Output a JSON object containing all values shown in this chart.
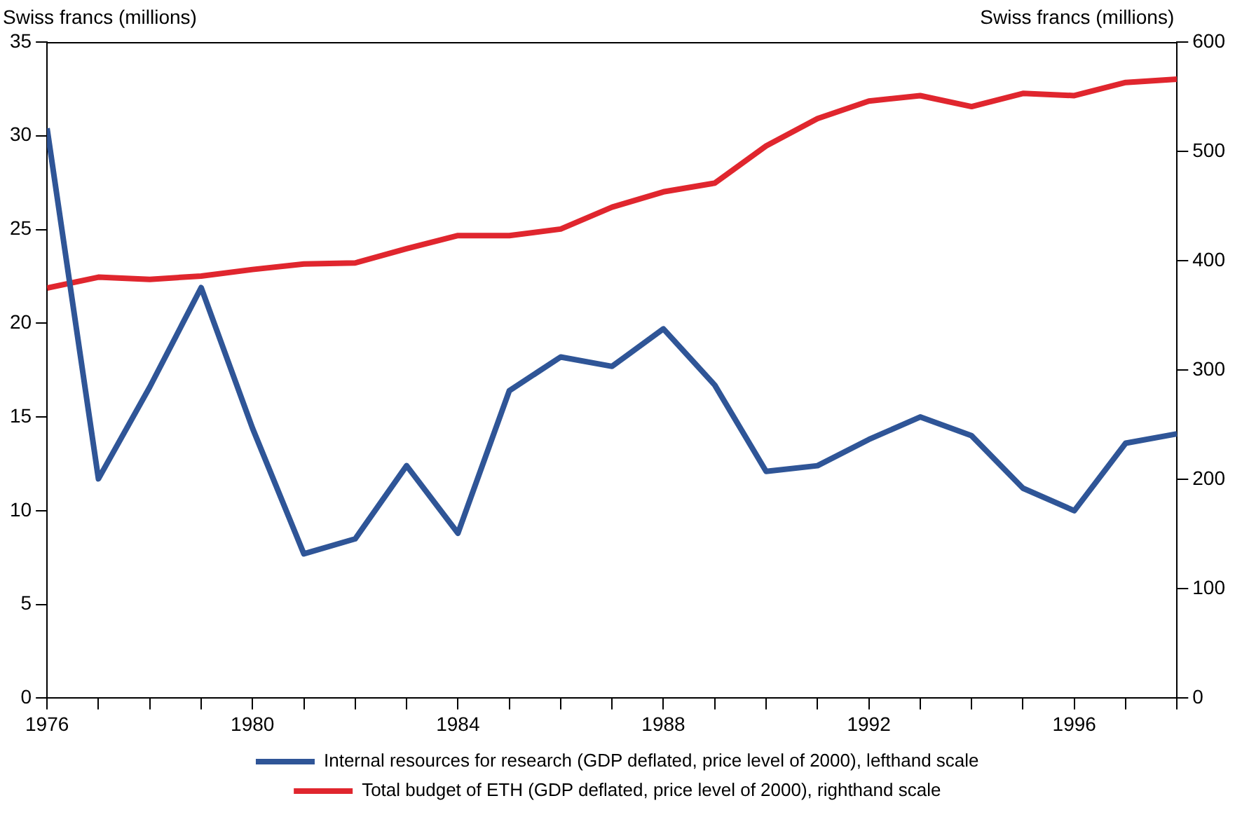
{
  "chart_data": {
    "type": "line",
    "ylabel": "Swiss francs (millions)",
    "y2label": "Swiss francs (millions)",
    "x": [
      1976,
      1977,
      1978,
      1979,
      1980,
      1981,
      1982,
      1983,
      1984,
      1985,
      1986,
      1987,
      1988,
      1989,
      1990,
      1991,
      1992,
      1993,
      1994,
      1995,
      1996,
      1997,
      1998
    ],
    "series": [
      {
        "name": "Internal resources for research (GDP deflated, price level of 2000), lefthand scale",
        "color": "#2f5597",
        "values": [
          30.4,
          11.7,
          16.6,
          21.9,
          14.4,
          7.7,
          8.5,
          12.4,
          8.8,
          16.4,
          18.2,
          17.7,
          19.7,
          16.7,
          12.1,
          12.4,
          13.8,
          15.0,
          14.0,
          11.2,
          10.0,
          13.6,
          14.1
        ]
      },
      {
        "name": "Total budget of ETH (GDP deflated, price level of 2000), righthand scale",
        "color": "#e0262e",
        "axis": "y2",
        "values": [
          375,
          385,
          383,
          386,
          392,
          397,
          398,
          411,
          423,
          423,
          429,
          449,
          463,
          471,
          505,
          530,
          546,
          551,
          541,
          553,
          551,
          563,
          566
        ]
      }
    ],
    "xlim": [
      1976,
      1998
    ],
    "xticks": [
      1976,
      {
        "value": 1977,
        "label": null
      },
      {
        "value": 1978,
        "label": null
      },
      {
        "value": 1979,
        "label": null
      },
      1980,
      {
        "value": 1981,
        "label": null
      },
      {
        "value": 1982,
        "label": null
      },
      {
        "value": 1983,
        "label": null
      },
      1984,
      {
        "value": 1985,
        "label": null
      },
      {
        "value": 1986,
        "label": null
      },
      {
        "value": 1987,
        "label": null
      },
      1988,
      {
        "value": 1989,
        "label": null
      },
      {
        "value": 1990,
        "label": null
      },
      {
        "value": 1991,
        "label": null
      },
      1992,
      {
        "value": 1993,
        "label": null
      },
      {
        "value": 1994,
        "label": null
      },
      {
        "value": 1995,
        "label": null
      },
      1996,
      {
        "value": 1997,
        "label": null
      },
      {
        "value": 1998,
        "label": null
      }
    ],
    "ylim": [
      0,
      35
    ],
    "yticks": [
      0,
      5,
      10,
      15,
      20,
      25,
      30,
      35
    ],
    "y2lim": [
      0,
      600
    ],
    "y2ticks": [
      0,
      100,
      200,
      300,
      400,
      500,
      600
    ],
    "grid": false,
    "legend": "bottom",
    "marker": "none",
    "line_style": "solid"
  }
}
